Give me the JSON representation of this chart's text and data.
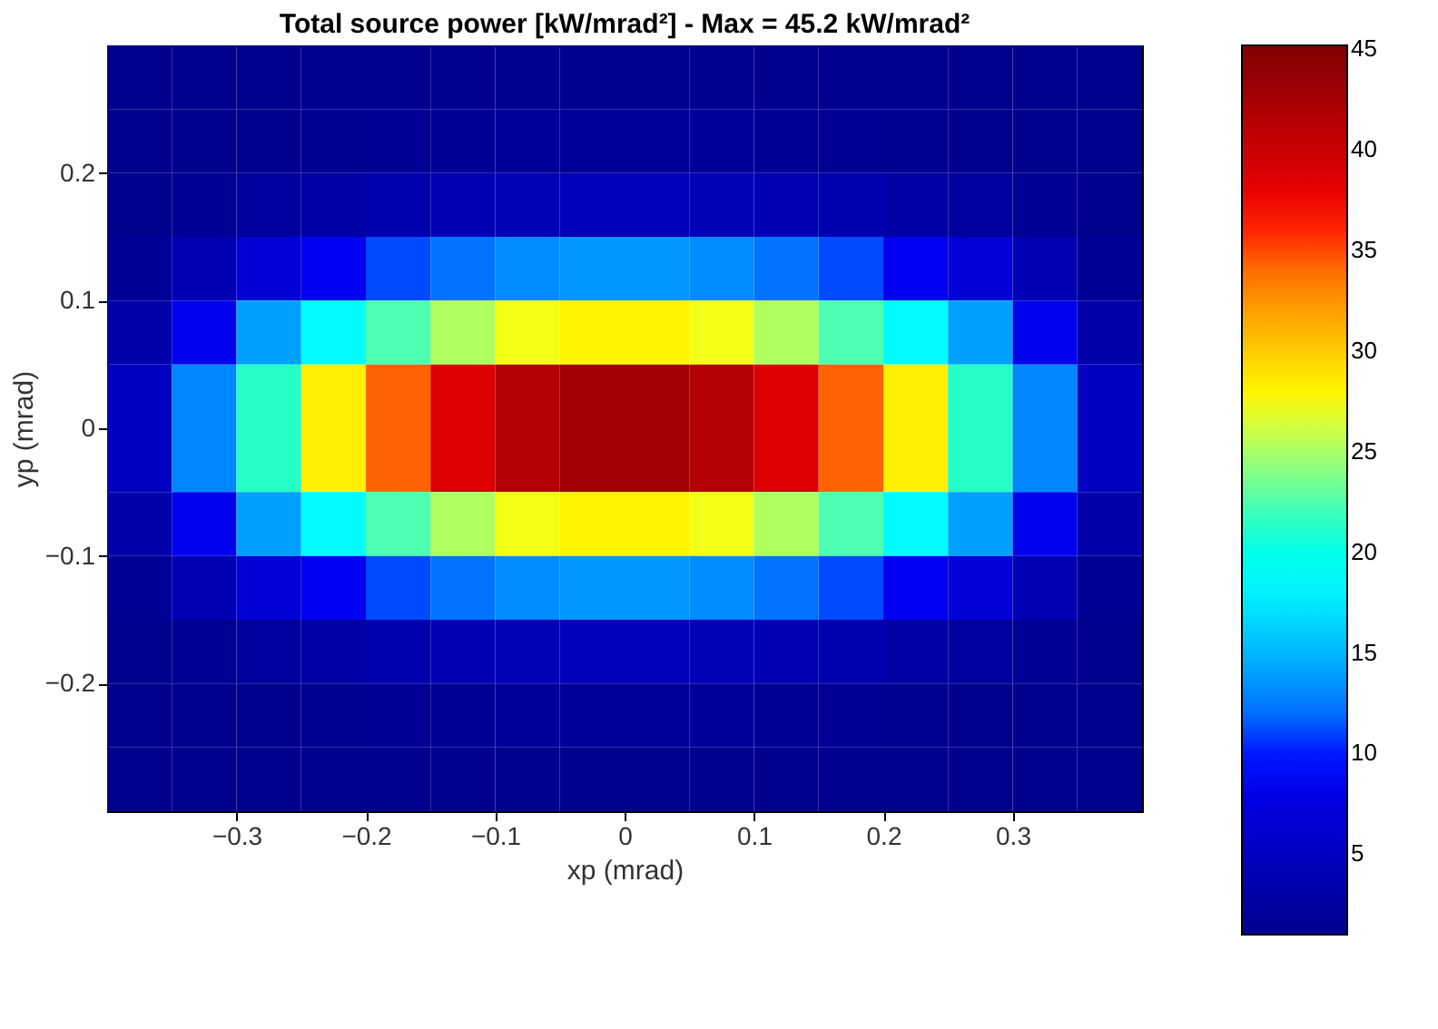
{
  "chart_data": {
    "type": "heatmap",
    "title": "Total source power [kW/mrad²]  -  Max = 45.2 kW/mrad²",
    "xlabel": "xp (mrad)",
    "ylabel": "yp (mrad)",
    "x": [
      -0.375,
      -0.325,
      -0.275,
      -0.225,
      -0.175,
      -0.125,
      -0.075,
      -0.025,
      0.025,
      0.075,
      0.125,
      0.175,
      0.225,
      0.275,
      0.325,
      0.375
    ],
    "y": [
      0.275,
      0.225,
      0.175,
      0.125,
      0.075,
      0.025,
      -0.025,
      -0.075,
      -0.125,
      -0.175,
      -0.225,
      -0.275
    ],
    "xlim": [
      -0.4,
      0.4
    ],
    "ylim": [
      -0.3,
      0.3
    ],
    "xticks": [
      -0.3,
      -0.2,
      -0.1,
      0,
      0.1,
      0.2,
      0.3
    ],
    "yticks": [
      -0.2,
      -0.1,
      0,
      0.1,
      0.2
    ],
    "clim": [
      1,
      45.2
    ],
    "cticks": [
      5,
      10,
      15,
      20,
      25,
      30,
      35,
      40,
      45
    ],
    "colors": [
      "#00008f",
      "#0000ff",
      "#00ffff",
      "#ffff00",
      "#ff0000",
      "#800000"
    ],
    "grid": false,
    "cells": [
      [
        1,
        1,
        1,
        1,
        1,
        1,
        1,
        1,
        1,
        1,
        1,
        1,
        1,
        1,
        1,
        1
      ],
      [
        1,
        1,
        1,
        1.2,
        1.4,
        1.6,
        1.8,
        1.8,
        1.8,
        1.8,
        1.6,
        1.4,
        1.2,
        1,
        1,
        1
      ],
      [
        1,
        1.4,
        2.3,
        3.0,
        3.6,
        4.1,
        4.4,
        4.5,
        4.5,
        4.4,
        4.1,
        3.6,
        3.0,
        2.3,
        1.4,
        1
      ],
      [
        1.6,
        4.1,
        6.8,
        8.9,
        10.9,
        12.2,
        13.1,
        13.6,
        13.6,
        13.1,
        12.2,
        10.9,
        8.9,
        6.8,
        4.1,
        1.6
      ],
      [
        3.3,
        8.4,
        14.0,
        18.5,
        22.4,
        25.2,
        27.2,
        28.0,
        28.0,
        27.2,
        25.2,
        22.4,
        18.5,
        14.0,
        8.4,
        3.3
      ],
      [
        5.1,
        12.9,
        21.5,
        28.3,
        34.4,
        38.7,
        41.6,
        42.9,
        42.9,
        41.6,
        38.7,
        34.4,
        28.3,
        21.5,
        12.9,
        5.1
      ],
      [
        5.1,
        12.9,
        21.5,
        28.3,
        34.4,
        38.7,
        41.6,
        42.9,
        42.9,
        41.6,
        38.7,
        34.4,
        28.3,
        21.5,
        12.9,
        5.1
      ],
      [
        3.3,
        8.4,
        14.0,
        18.5,
        22.4,
        25.2,
        27.2,
        28.0,
        28.0,
        27.2,
        25.2,
        22.4,
        18.5,
        14.0,
        8.4,
        3.3
      ],
      [
        1.6,
        4.1,
        6.8,
        8.9,
        10.9,
        12.2,
        13.1,
        13.6,
        13.6,
        13.1,
        12.2,
        10.9,
        8.9,
        6.8,
        4.1,
        1.6
      ],
      [
        1,
        1.4,
        2.3,
        3.0,
        3.6,
        4.1,
        4.4,
        4.5,
        4.5,
        4.4,
        4.1,
        3.6,
        3.0,
        2.3,
        1.4,
        1
      ],
      [
        1,
        1,
        1,
        1.2,
        1.4,
        1.6,
        1.8,
        1.8,
        1.8,
        1.8,
        1.6,
        1.4,
        1.2,
        1,
        1,
        1
      ],
      [
        1,
        1,
        1,
        1,
        1,
        1,
        1,
        1,
        1,
        1,
        1,
        1,
        1,
        1,
        1,
        1
      ]
    ]
  }
}
